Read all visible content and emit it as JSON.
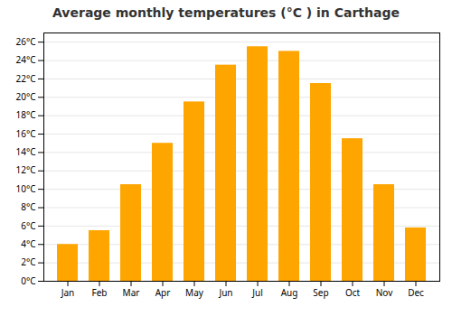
{
  "chart_data": {
    "type": "bar",
    "title": "Average monthly temperatures (°C ) in Carthage",
    "categories": [
      "Jan",
      "Feb",
      "Mar",
      "Apr",
      "May",
      "Jun",
      "Jul",
      "Aug",
      "Sep",
      "Oct",
      "Nov",
      "Dec"
    ],
    "values": [
      4.0,
      5.5,
      10.5,
      15.0,
      19.5,
      23.5,
      25.5,
      25.0,
      21.5,
      15.5,
      10.5,
      5.8
    ],
    "color": "#FFA500",
    "ylim": [
      0,
      27
    ],
    "yticks": [
      {
        "value": 0,
        "label": "0°C"
      },
      {
        "value": 2,
        "label": "2°C"
      },
      {
        "value": 4,
        "label": "4°C"
      },
      {
        "value": 6,
        "label": "6°C"
      },
      {
        "value": 8,
        "label": "8°C"
      },
      {
        "value": 10,
        "label": "10°C"
      },
      {
        "value": 12,
        "label": "12°C"
      },
      {
        "value": 14,
        "label": "14°C"
      },
      {
        "value": 16,
        "label": "16°C"
      },
      {
        "value": 18,
        "label": "18°C"
      },
      {
        "value": 20,
        "label": "20°C"
      },
      {
        "value": 22,
        "label": "22°C"
      },
      {
        "value": 24,
        "label": "24°C"
      },
      {
        "value": 26,
        "label": "26°C"
      }
    ],
    "grid": true
  }
}
